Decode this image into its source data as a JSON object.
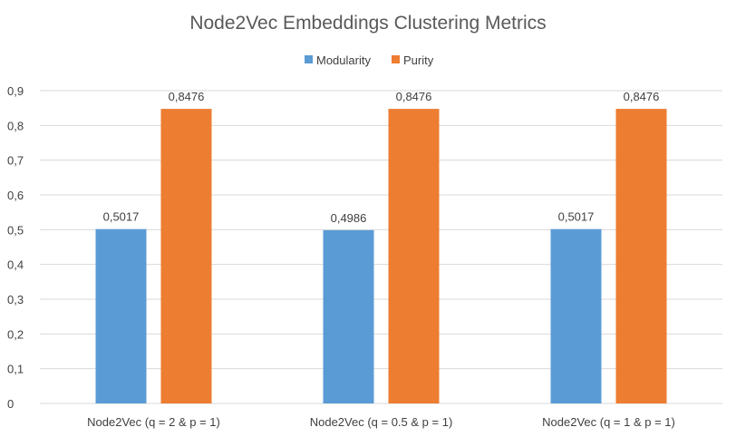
{
  "chart_data": {
    "type": "bar",
    "title": "Node2Vec Embeddings Clustering Metrics",
    "xlabel": "",
    "ylabel": "",
    "ylim": [
      0,
      0.9
    ],
    "yticks": [
      "0",
      "0,1",
      "0,2",
      "0,3",
      "0,4",
      "0,5",
      "0,6",
      "0,7",
      "0,8",
      "0,9"
    ],
    "ytick_values": [
      0,
      0.1,
      0.2,
      0.3,
      0.4,
      0.5,
      0.6,
      0.7,
      0.8,
      0.9
    ],
    "grid": true,
    "legend_position": "top",
    "categories": [
      "Node2Vec (q = 2 & p = 1)",
      "Node2Vec (q = 0.5 & p = 1)",
      "Node2Vec (q = 1 & p = 1)"
    ],
    "series": [
      {
        "name": "Modularity",
        "color": "#5b9bd5",
        "values": [
          0.5017,
          0.4986,
          0.5017
        ],
        "labels": [
          "0,5017",
          "0,4986",
          "0,5017"
        ]
      },
      {
        "name": "Purity",
        "color": "#ed7d31",
        "values": [
          0.8476,
          0.8476,
          0.8476
        ],
        "labels": [
          "0,8476",
          "0,8476",
          "0,8476"
        ]
      }
    ]
  }
}
